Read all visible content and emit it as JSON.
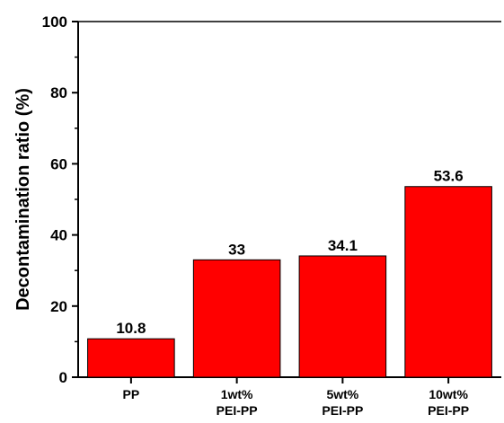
{
  "chart_data": {
    "type": "bar",
    "categories": [
      "PP",
      "1wt%\nPEI-PP",
      "5wt%\nPEI-PP",
      "10wt%\nPEI-PP"
    ],
    "values": [
      10.8,
      33,
      34.1,
      53.6
    ],
    "data_labels": [
      "10.8",
      "33",
      "34.1",
      "53.6"
    ],
    "title": "",
    "xlabel": "",
    "ylabel": "Decontamination ratio (%)",
    "ylim": [
      0,
      100
    ],
    "yticks": [
      0,
      20,
      40,
      60,
      80,
      100
    ],
    "grid": false,
    "bar_color": "#ff0000",
    "bar_edge_color": "#000000"
  }
}
